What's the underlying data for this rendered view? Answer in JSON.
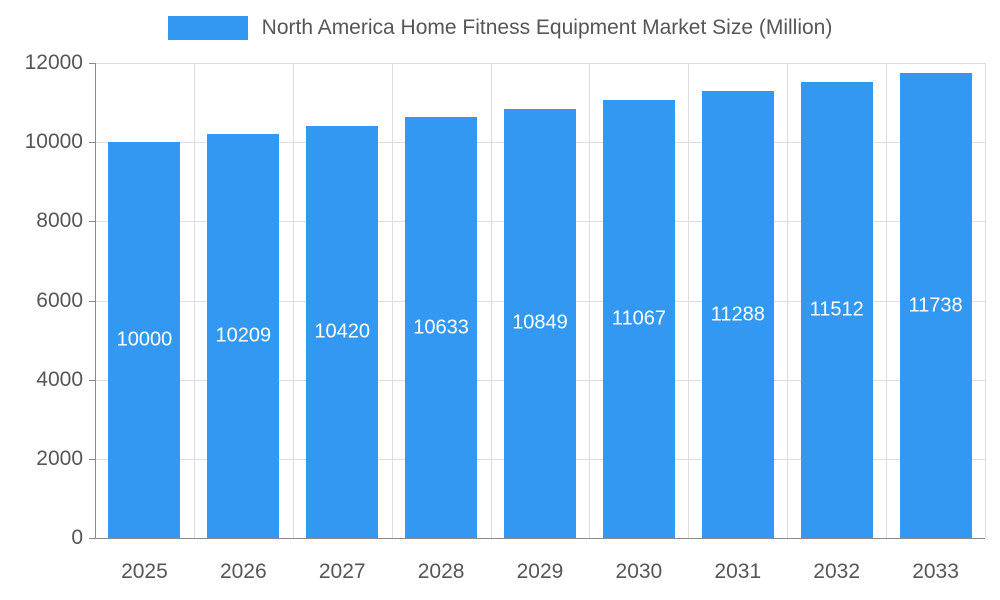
{
  "chart_data": {
    "type": "bar",
    "title": "North America Home Fitness Equipment Market Size (Million)",
    "categories": [
      "2025",
      "2026",
      "2027",
      "2028",
      "2029",
      "2030",
      "2031",
      "2032",
      "2033"
    ],
    "values": [
      10000,
      10209,
      10420,
      10633,
      10849,
      11067,
      11288,
      11512,
      11738
    ],
    "xlabel": "",
    "ylabel": "",
    "ylim": [
      0,
      12000
    ],
    "yticks": [
      0,
      2000,
      4000,
      6000,
      8000,
      10000,
      12000
    ],
    "grid": true,
    "legend_position": "top",
    "colors": {
      "bar": "#3398f2",
      "bar_value_label": "#ffffff",
      "axis_text": "#565656",
      "grid_line": "#dddddd",
      "axis_line": "#8a8a8a",
      "background": "#ffffff"
    }
  }
}
